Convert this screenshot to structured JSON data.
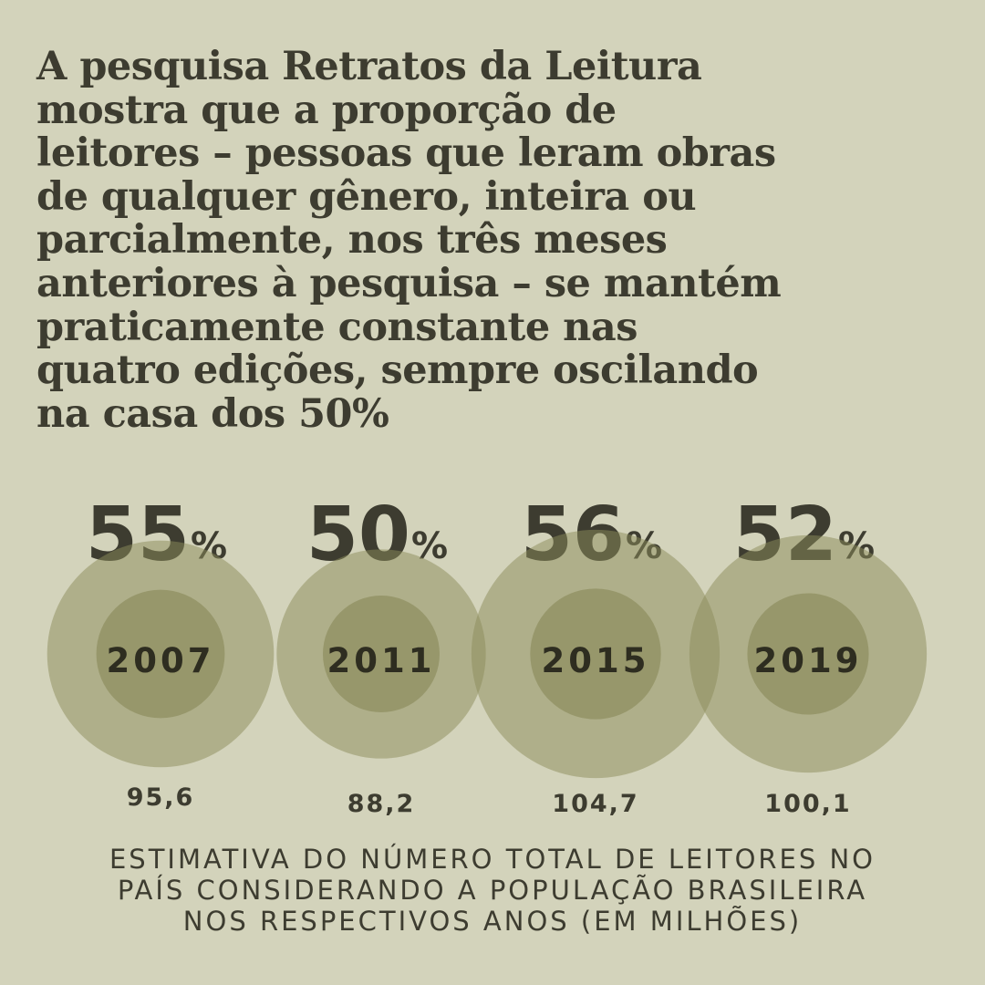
{
  "title_lines": [
    "A pesquisa Retratos da Leitura",
    "mostra que a proporção de",
    "leitores – pessoas que leram obras",
    "de qualquer gênero, inteira ou",
    "parcialmente, nos três meses",
    "anteriores à pesquisa – se mantém",
    "praticamente constante nas",
    "quatro edições, sempre oscilando",
    "na casa dos 50%"
  ],
  "colors": {
    "background": "#d3d3bb",
    "text": "#3d3c30",
    "outer_circle": "#afaf8a",
    "inner_circle": "#939263"
  },
  "chart_data": {
    "type": "bubble",
    "categories": [
      "2007",
      "2011",
      "2015",
      "2019"
    ],
    "series": [
      {
        "name": "readers_percent",
        "values": [
          55,
          50,
          56,
          52
        ],
        "labels": [
          "55",
          "50",
          "56",
          "52"
        ],
        "unit": "%"
      },
      {
        "name": "readers_millions",
        "values": [
          95.6,
          88.2,
          104.7,
          100.1
        ],
        "labels": [
          "95,6",
          "88,2",
          "104,7",
          "100,1"
        ]
      }
    ]
  },
  "caption_lines": [
    "ESTIMATIVA DO NÚMERO TOTAL DE LEITORES NO",
    "PAÍS CONSIDERANDO A POPULAÇÃO BRASILEIRA",
    "NOS RESPECTIVOS ANOS (EM MILHÕES)"
  ]
}
